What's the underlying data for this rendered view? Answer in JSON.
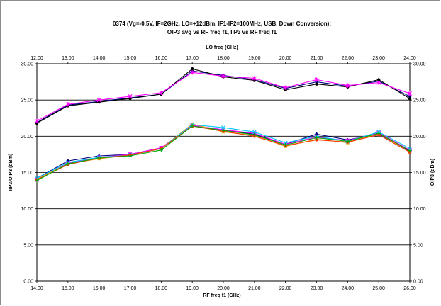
{
  "chart_data": {
    "type": "line",
    "title_line1": "0374 (Vg=-0.5V, IF=2GHz, LO=+12dBm, IF1-IF2=100MHz, USB, Down Conversion):",
    "title_line2": "OIP3 avg vs RF freq f1, IIP3 vs RF freq f1",
    "xlabel": "RF freq f1 (GHz)",
    "x2label": "LO freq (GHz)",
    "ylabel": "IIP3/OIP3 (dBm)",
    "y2label": "OIP3 (dBm)",
    "xlim": [
      14,
      26
    ],
    "x2lim": [
      12,
      24
    ],
    "ylim": [
      0,
      30
    ],
    "grid": true,
    "x": [
      14,
      15,
      16,
      17,
      18,
      19,
      20,
      21,
      22,
      23,
      24,
      25,
      26
    ],
    "x_ticks": [
      "14.00",
      "15.00",
      "16.00",
      "17.00",
      "18.00",
      "19.00",
      "20.00",
      "21.00",
      "22.00",
      "23.00",
      "24.00",
      "25.00",
      "26.00"
    ],
    "x2_ticks": [
      "12.00",
      "13.00",
      "14.00",
      "15.00",
      "16.00",
      "17.00",
      "18.00",
      "19.00",
      "20.00",
      "21.00",
      "22.00",
      "23.00",
      "24.00"
    ],
    "y_ticks": [
      "0.00",
      "5.00",
      "10.00",
      "15.00",
      "20.00",
      "25.00",
      "30.00"
    ],
    "series": [
      {
        "color": "#000080",
        "marker": "diamond",
        "values": [
          21.9,
          24.3,
          24.8,
          25.3,
          25.8,
          29.0,
          28.4,
          27.8,
          26.6,
          27.5,
          26.9,
          27.6,
          25.5
        ]
      },
      {
        "color": "#000000",
        "marker": "circle",
        "values": [
          21.8,
          24.2,
          24.7,
          25.2,
          25.8,
          29.3,
          28.2,
          27.7,
          26.4,
          27.2,
          26.8,
          27.8,
          25.2
        ]
      },
      {
        "color": "#ff00ff",
        "marker": "star",
        "values": [
          22.1,
          24.4,
          25.0,
          25.5,
          26.0,
          28.8,
          28.3,
          28.0,
          26.7,
          27.8,
          27.0,
          27.4,
          25.9
        ]
      },
      {
        "color": "#000080",
        "marker": "diamond",
        "values": [
          14.2,
          16.6,
          17.3,
          17.5,
          18.4,
          21.4,
          20.8,
          20.3,
          18.9,
          20.3,
          19.5,
          20.3,
          17.9
        ]
      },
      {
        "color": "#ff00ff",
        "marker": "square",
        "values": [
          14.0,
          16.3,
          17.1,
          17.5,
          18.4,
          21.5,
          20.9,
          20.4,
          18.9,
          19.9,
          19.4,
          20.5,
          18.1
        ]
      },
      {
        "color": "#e8a317",
        "marker": "triangle",
        "values": [
          14.1,
          16.2,
          16.9,
          17.4,
          18.3,
          21.7,
          20.6,
          20.1,
          18.6,
          19.6,
          19.1,
          20.4,
          17.8
        ]
      },
      {
        "color": "#00c8ff",
        "marker": "x",
        "values": [
          14.2,
          16.4,
          17.1,
          17.4,
          18.3,
          21.6,
          21.2,
          20.6,
          19.1,
          20.0,
          19.3,
          20.6,
          18.3
        ]
      },
      {
        "color": "#ff3300",
        "marker": "circle",
        "values": [
          14.0,
          16.1,
          17.0,
          17.4,
          18.3,
          21.4,
          20.7,
          20.0,
          18.7,
          19.5,
          19.2,
          20.2,
          17.8
        ]
      },
      {
        "color": "#00aa00",
        "marker": "plus",
        "values": [
          13.9,
          16.2,
          17.0,
          17.3,
          18.1,
          21.4,
          20.8,
          20.2,
          18.8,
          19.8,
          19.3,
          20.4,
          18.0
        ]
      }
    ]
  }
}
